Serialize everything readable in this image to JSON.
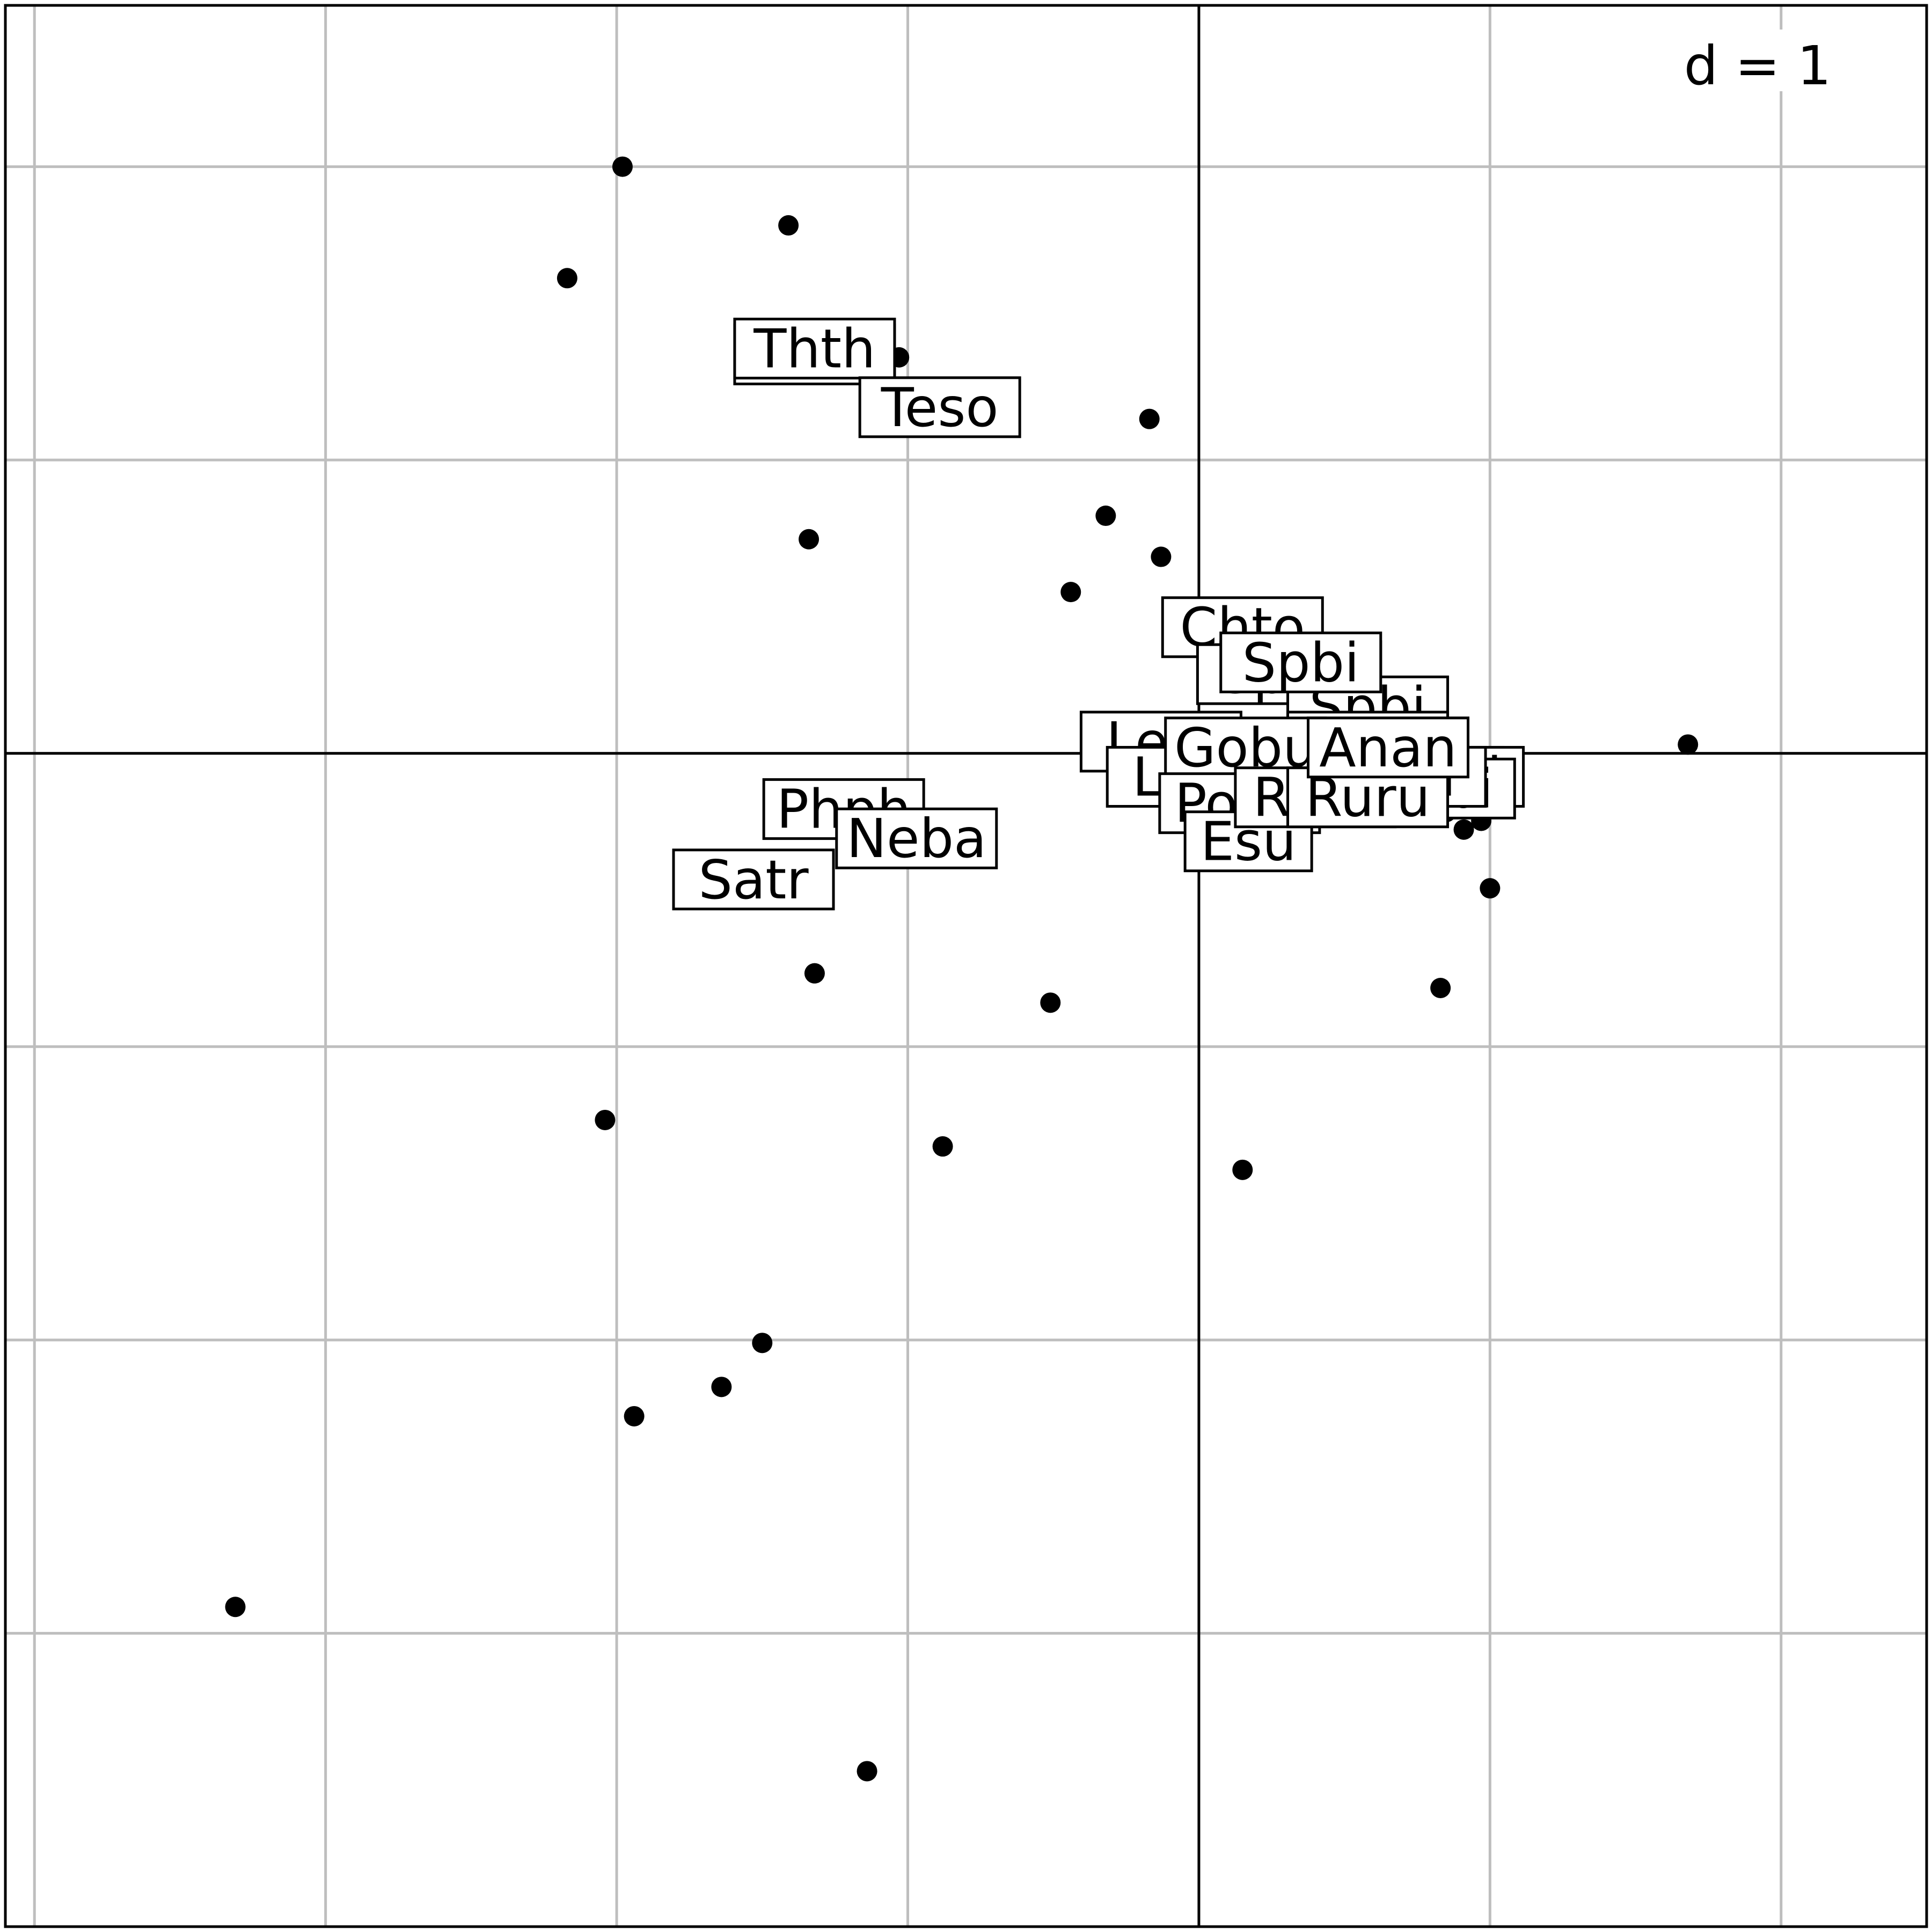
{
  "chart_data": {
    "type": "scatter",
    "title": "",
    "xlabel": "",
    "ylabel": "",
    "scale_label": "d = 1",
    "xlim": [
      -4.1,
      2.5
    ],
    "ylim": [
      -4.0,
      2.55
    ],
    "grid": true,
    "grid_step": 1,
    "colors": {
      "background": "#ffffff",
      "grid": "#bebebe",
      "axis": "#000000",
      "point": "#000000",
      "label_border": "#000000",
      "label_fill": "#ffffff"
    },
    "points": [
      {
        "x": -1.98,
        "y": 2.0
      },
      {
        "x": -1.41,
        "y": 1.8
      },
      {
        "x": -2.17,
        "y": 1.62
      },
      {
        "x": -1.56,
        "y": 1.38
      },
      {
        "x": -1.03,
        "y": 1.35
      },
      {
        "x": -0.17,
        "y": 1.14
      },
      {
        "x": -0.32,
        "y": 0.81
      },
      {
        "x": -0.13,
        "y": 0.67
      },
      {
        "x": -1.34,
        "y": 0.73
      },
      {
        "x": -0.44,
        "y": 0.55
      },
      {
        "x": 0.09,
        "y": 0.2
      },
      {
        "x": 1.68,
        "y": 0.03
      },
      {
        "x": 0.85,
        "y": -0.2
      },
      {
        "x": 0.97,
        "y": -0.23
      },
      {
        "x": 0.91,
        "y": -0.26
      },
      {
        "x": 1.0,
        "y": -0.46
      },
      {
        "x": 0.83,
        "y": -0.8
      },
      {
        "x": -1.32,
        "y": -0.75
      },
      {
        "x": -0.51,
        "y": -0.85
      },
      {
        "x": -2.04,
        "y": -1.25
      },
      {
        "x": -0.88,
        "y": -1.34
      },
      {
        "x": 0.15,
        "y": -1.42
      },
      {
        "x": -1.5,
        "y": -2.01
      },
      {
        "x": -1.64,
        "y": -2.16
      },
      {
        "x": -1.94,
        "y": -2.26
      },
      {
        "x": -3.31,
        "y": -2.91
      },
      {
        "x": -1.14,
        "y": -3.47
      }
    ],
    "labels": [
      {
        "text": "Thth",
        "x": -1.32,
        "y": 1.36
      },
      {
        "text": "Thth",
        "x": -1.32,
        "y": 1.38
      },
      {
        "text": "Teso",
        "x": -0.89,
        "y": 1.18
      },
      {
        "text": "Chto",
        "x": 0.15,
        "y": 0.43
      },
      {
        "text": "Spbi",
        "x": 0.35,
        "y": 0.28
      },
      {
        "text": "Spbi",
        "x": 0.27,
        "y": 0.27
      },
      {
        "text": "Spbi",
        "x": 0.58,
        "y": 0.16
      },
      {
        "text": "Spbi",
        "x": 0.58,
        "y": 0.04
      },
      {
        "text": "Spbi",
        "x": 0.64,
        "y": 0.0
      },
      {
        "text": "Spbi",
        "x": 0.77,
        "y": -0.08
      },
      {
        "text": "Spbi",
        "x": 0.84,
        "y": -0.08
      },
      {
        "text": "Spbi",
        "x": 0.81,
        "y": -0.12
      },
      {
        "text": "Lele",
        "x": -0.13,
        "y": 0.04
      },
      {
        "text": "Lele",
        "x": -0.04,
        "y": -0.08
      },
      {
        "text": "Gobu",
        "x": 0.16,
        "y": 0.02
      },
      {
        "text": "Anan",
        "x": 0.65,
        "y": 0.02
      },
      {
        "text": "Bibi",
        "x": 0.71,
        "y": -0.08
      },
      {
        "text": "Pono",
        "x": 0.14,
        "y": -0.17
      },
      {
        "text": "Esu",
        "x": 0.17,
        "y": -0.3
      },
      {
        "text": "Ruru",
        "x": 0.4,
        "y": -0.15
      },
      {
        "text": "Ruru",
        "x": 0.58,
        "y": -0.15
      },
      {
        "text": "Phph",
        "x": -1.22,
        "y": -0.19
      },
      {
        "text": "Neba",
        "x": -0.97,
        "y": -0.29
      },
      {
        "text": "Satr",
        "x": -1.53,
        "y": -0.43
      },
      {
        "text": "Anan",
        "x": 0.65,
        "y": 0.02
      },
      {
        "text": "Spbi",
        "x": 0.35,
        "y": 0.31
      }
    ]
  }
}
